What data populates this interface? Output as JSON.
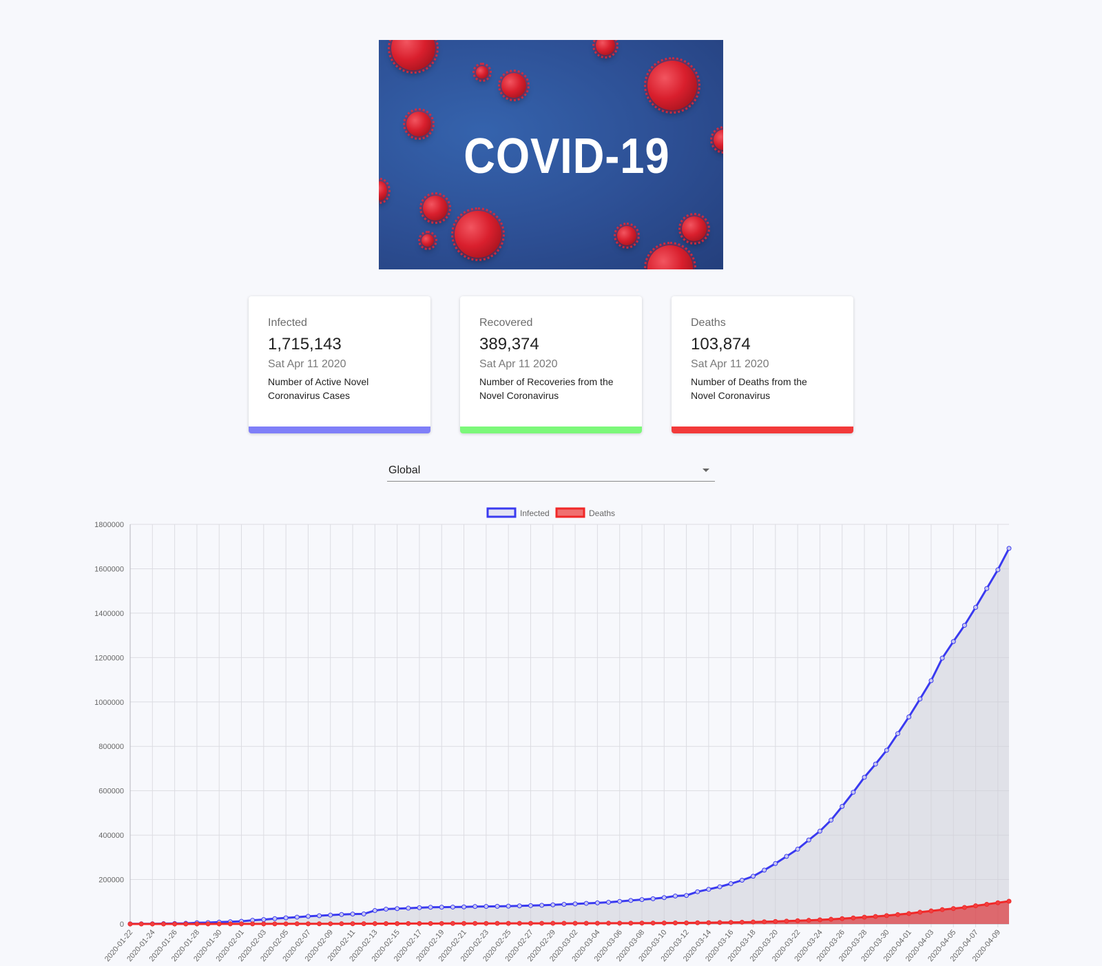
{
  "hero": {
    "title": "COVID-19"
  },
  "cards": [
    {
      "label": "Infected",
      "value": "1,715,143",
      "date": "Sat Apr 11 2020",
      "description": "Number of Active Novel Coronavirus Cases",
      "color": "#7f7ff8"
    },
    {
      "label": "Recovered",
      "value": "389,374",
      "date": "Sat Apr 11 2020",
      "description": "Number of Recoveries from the Novel Coronavirus",
      "color": "#7cf87a"
    },
    {
      "label": "Deaths",
      "value": "103,874",
      "date": "Sat Apr 11 2020",
      "description": "Number of Deaths from the Novel Coronavirus",
      "color": "#f23a3a"
    }
  ],
  "country_select": {
    "selected": "Global"
  },
  "chart_data": {
    "type": "line",
    "legend": [
      "Infected",
      "Deaths"
    ],
    "legend_position": "top-center",
    "grid": true,
    "ylim": [
      0,
      1800000
    ],
    "yticks": [
      0,
      200000,
      400000,
      600000,
      800000,
      1000000,
      1200000,
      1400000,
      1600000,
      1800000
    ],
    "xtick_labels": [
      "2020-01-22",
      "2020-01-24",
      "2020-01-26",
      "2020-01-28",
      "2020-01-30",
      "2020-02-01",
      "2020-02-03",
      "2020-02-05",
      "2020-02-07",
      "2020-02-09",
      "2020-02-11",
      "2020-02-13",
      "2020-02-15",
      "2020-02-17",
      "2020-02-19",
      "2020-02-21",
      "2020-02-23",
      "2020-02-25",
      "2020-02-27",
      "2020-02-29",
      "2020-03-02",
      "2020-03-04",
      "2020-03-06",
      "2020-03-08",
      "2020-03-10",
      "2020-03-12",
      "2020-03-14",
      "2020-03-16",
      "2020-03-18",
      "2020-03-20",
      "2020-03-22",
      "2020-03-24",
      "2020-03-26",
      "2020-03-28",
      "2020-03-30",
      "2020-04-01",
      "2020-04-03",
      "2020-04-05",
      "2020-04-07",
      "2020-04-09"
    ],
    "x_start": "2020-01-22",
    "x_end": "2020-04-10",
    "series": [
      {
        "name": "Infected",
        "color": "#3a3af0",
        "fill": "rgba(205,205,215,0.55)",
        "values": [
          555,
          654,
          941,
          1434,
          2118,
          2927,
          5578,
          6166,
          8234,
          9927,
          12038,
          16787,
          19881,
          23892,
          27635,
          30794,
          34391,
          37120,
          40150,
          42762,
          44802,
          45221,
          60368,
          66885,
          69030,
          71224,
          73258,
          75136,
          75639,
          76197,
          76819,
          78572,
          78958,
          79561,
          80406,
          81388,
          82746,
          84112,
          86011,
          88369,
          90306,
          92840,
          95120,
          97886,
          101801,
          105847,
          109821,
          113590,
          118620,
          125875,
          128352,
          145205,
          156101,
          167454,
          181574,
          197102,
          214821,
          242570,
          272208,
          304507,
          336953,
          378231,
          418041,
          467653,
          529591,
          593291,
          660706,
          720117,
          782365,
          857487,
          932605,
          1013466,
          1095917,
          1197405,
          1272115,
          1345101,
          1426096,
          1511104,
          1595350,
          1691719
        ]
      },
      {
        "name": "Deaths",
        "color": "#f02828",
        "fill": "rgba(220,40,45,0.65)",
        "values": [
          17,
          18,
          26,
          42,
          56,
          82,
          131,
          133,
          171,
          213,
          259,
          362,
          426,
          492,
          564,
          634,
          719,
          806,
          906,
          1013,
          1113,
          1118,
          1371,
          1523,
          1666,
          1770,
          1868,
          2007,
          2122,
          2247,
          2251,
          2458,
          2469,
          2629,
          2708,
          2770,
          2814,
          2872,
          2941,
          2996,
          3085,
          3160,
          3254,
          3348,
          3460,
          3558,
          3803,
          3996,
          4262,
          4615,
          4720,
          5404,
          5819,
          6440,
          7126,
          7905,
          8733,
          9867,
          11299,
          12973,
          14651,
          16505,
          18625,
          21181,
          23970,
          27198,
          30652,
          33925,
          37582,
          42107,
          46809,
          52983,
          58787,
          64606,
          69374,
          74565,
          81865,
          88338,
          95455,
          102525
        ]
      }
    ]
  }
}
